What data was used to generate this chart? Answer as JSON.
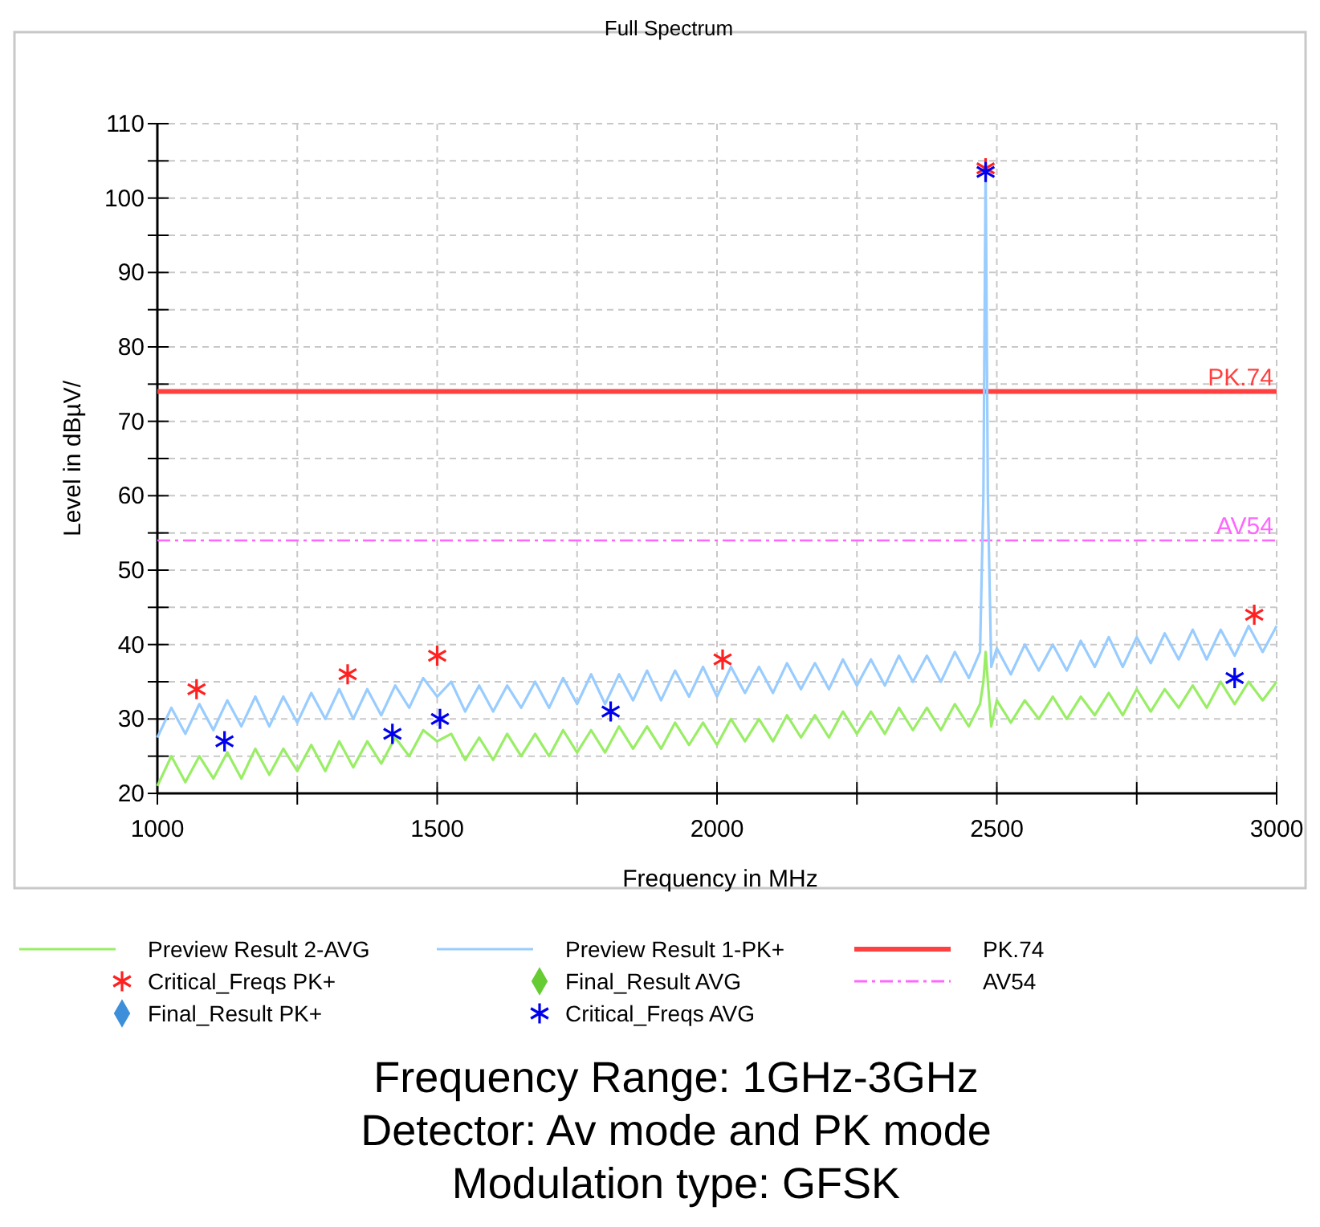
{
  "chart_data": {
    "type": "line",
    "title": "Full Spectrum",
    "xlabel": "Frequency in MHz",
    "ylabel": "Level in dBµV/",
    "xlim": [
      1000,
      3000
    ],
    "ylim": [
      20,
      110
    ],
    "xticks": [
      1000,
      {
        "value": 1250,
        "label": null
      },
      1500,
      {
        "value": 1750,
        "label": null
      },
      2000,
      {
        "value": 2250,
        "label": null
      },
      2500,
      {
        "value": 2750,
        "label": null
      },
      3000
    ],
    "yticks": [
      20,
      {
        "value": 25,
        "label": null
      },
      30,
      {
        "value": 35,
        "label": null
      },
      40,
      {
        "value": 45,
        "label": null
      },
      50,
      {
        "value": 55,
        "label": null
      },
      60,
      {
        "value": 65,
        "label": null
      },
      70,
      {
        "value": 75,
        "label": null
      },
      80,
      {
        "value": 85,
        "label": null
      },
      90,
      {
        "value": 95,
        "label": null
      },
      100,
      {
        "value": 105,
        "label": null
      },
      110
    ],
    "grid": true,
    "legend": "bottom",
    "series": [
      {
        "name": "Preview  Result 2-AVG",
        "color": "#99ee66",
        "marker": "none",
        "x": [
          1000,
          1025,
          1050,
          1075,
          1100,
          1125,
          1150,
          1175,
          1200,
          1225,
          1250,
          1275,
          1300,
          1325,
          1350,
          1375,
          1400,
          1425,
          1450,
          1475,
          1500,
          1525,
          1550,
          1575,
          1600,
          1625,
          1650,
          1675,
          1700,
          1725,
          1750,
          1775,
          1800,
          1825,
          1850,
          1875,
          1900,
          1925,
          1950,
          1975,
          2000,
          2025,
          2050,
          2075,
          2100,
          2125,
          2150,
          2175,
          2200,
          2225,
          2250,
          2275,
          2300,
          2325,
          2350,
          2375,
          2400,
          2425,
          2450,
          2470,
          2476,
          2480,
          2484,
          2490,
          2500,
          2525,
          2550,
          2575,
          2600,
          2625,
          2650,
          2675,
          2700,
          2725,
          2750,
          2775,
          2800,
          2825,
          2850,
          2875,
          2900,
          2925,
          2950,
          2975,
          3000
        ],
        "values": [
          21,
          25,
          21.5,
          25,
          22,
          25.5,
          22,
          26,
          22.5,
          26,
          23,
          26.5,
          23,
          27,
          23.5,
          27,
          24,
          27.5,
          25,
          28.5,
          27,
          28,
          24.5,
          27.5,
          24.5,
          28,
          25,
          28,
          25,
          28.5,
          25.5,
          28.5,
          25.5,
          29,
          26,
          29,
          26,
          29.5,
          26.5,
          29.5,
          26.5,
          30,
          27,
          30,
          27,
          30.5,
          27.5,
          30.5,
          27.5,
          31,
          28,
          31,
          28,
          31.5,
          28.5,
          31.5,
          28.5,
          32,
          29,
          32,
          35,
          39,
          35,
          29,
          32.5,
          29.5,
          32.5,
          30,
          33,
          30,
          33,
          30.5,
          33.5,
          30.5,
          34,
          31,
          34,
          31.5,
          34.5,
          31.5,
          35,
          32,
          35,
          32.5,
          35
        ]
      },
      {
        "name": "Critical_Freqs PK+",
        "type": "scatter",
        "color": "#ff2020",
        "marker": "cross",
        "x": [
          1070,
          1340,
          1500,
          2010,
          2480,
          2960
        ],
        "values": [
          34,
          36,
          38.5,
          38,
          104,
          44
        ]
      },
      {
        "name": "Final_Result PK+",
        "type": "scatter",
        "color": "#3d8fd9",
        "marker": "diamond"
      },
      {
        "name": "Preview  Result 1-PK+",
        "color": "#99ccff",
        "marker": "none",
        "x": [
          1000,
          1025,
          1050,
          1075,
          1100,
          1125,
          1150,
          1175,
          1200,
          1225,
          1250,
          1275,
          1300,
          1325,
          1350,
          1375,
          1400,
          1425,
          1450,
          1475,
          1500,
          1525,
          1550,
          1575,
          1600,
          1625,
          1650,
          1675,
          1700,
          1725,
          1750,
          1775,
          1800,
          1825,
          1850,
          1875,
          1900,
          1925,
          1950,
          1975,
          2000,
          2025,
          2050,
          2075,
          2100,
          2125,
          2150,
          2175,
          2200,
          2225,
          2250,
          2275,
          2300,
          2325,
          2350,
          2375,
          2400,
          2425,
          2450,
          2470,
          2476,
          2480,
          2484,
          2490,
          2500,
          2525,
          2550,
          2575,
          2600,
          2625,
          2650,
          2675,
          2700,
          2725,
          2750,
          2775,
          2800,
          2825,
          2850,
          2875,
          2900,
          2925,
          2950,
          2975,
          3000
        ],
        "values": [
          27.5,
          31.5,
          28,
          32,
          28.5,
          32.5,
          29,
          33,
          29,
          33,
          29.5,
          33.5,
          30,
          34,
          30,
          34,
          30.5,
          34.5,
          31.5,
          35.5,
          33,
          35,
          31,
          34.5,
          31,
          34.5,
          31.5,
          35,
          31.5,
          35.5,
          32,
          36,
          32,
          36,
          32.5,
          36.5,
          32.5,
          36.5,
          33,
          37,
          33,
          37,
          33.5,
          37,
          33.5,
          37.5,
          34,
          37.5,
          34,
          38,
          34.5,
          38,
          34.5,
          38.5,
          35,
          38.5,
          35,
          39,
          35.5,
          39,
          60,
          104,
          60,
          37,
          39.5,
          36,
          40,
          36.5,
          40,
          36.5,
          40.5,
          37,
          41,
          37,
          41,
          37.5,
          41.5,
          38,
          42,
          38,
          42,
          38.5,
          42.5,
          39,
          42.5
        ]
      },
      {
        "name": "Final_Result AVG",
        "type": "scatter",
        "color": "#66cc33",
        "marker": "diamond"
      },
      {
        "name": "Critical_Freqs AVG",
        "type": "scatter",
        "color": "#0000ee",
        "marker": "cross",
        "x": [
          1120,
          1420,
          1505,
          1810,
          2480,
          2925
        ],
        "values": [
          27,
          28,
          30,
          31,
          103.5,
          35.5
        ]
      }
    ],
    "ref_lines": [
      {
        "axis": "y",
        "value": 74,
        "label": "PK.74",
        "color": "#ff4040",
        "line_style": "solid"
      },
      {
        "axis": "y",
        "value": 54,
        "label": "AV54",
        "color": "#ff66ff",
        "line_style": "dashed"
      }
    ],
    "annotations": [
      "Frequency Range: 1GHz-3GHz",
      "Detector: Av mode and PK mode",
      "Modulation type: GFSK"
    ]
  }
}
